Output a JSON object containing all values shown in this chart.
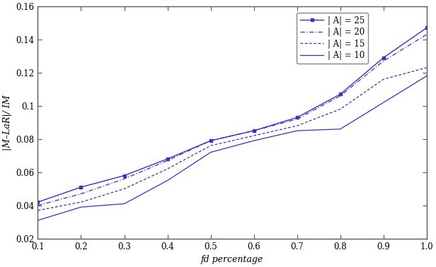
{
  "x": [
    0.1,
    0.2,
    0.3,
    0.4,
    0.5,
    0.6,
    0.7,
    0.8,
    0.9,
    1.0
  ],
  "series": {
    "|A|=25": [
      0.042,
      0.051,
      0.058,
      0.068,
      0.079,
      0.085,
      0.093,
      0.107,
      0.129,
      0.147
    ],
    "|A|=20": [
      0.04,
      0.047,
      0.056,
      0.067,
      0.079,
      0.085,
      0.092,
      0.106,
      0.127,
      0.143
    ],
    "|A|=15": [
      0.037,
      0.042,
      0.05,
      0.062,
      0.076,
      0.082,
      0.088,
      0.098,
      0.116,
      0.123
    ],
    "|A|=10": [
      0.031,
      0.039,
      0.041,
      0.055,
      0.072,
      0.079,
      0.085,
      0.086,
      0.102,
      0.118
    ]
  },
  "color": "#3333bb",
  "xlabel": "fd percentage",
  "ylabel": "|M–LaR|/ IM",
  "xlim": [
    0.1,
    1.0
  ],
  "ylim": [
    0.02,
    0.16
  ],
  "xticks": [
    0.1,
    0.2,
    0.3,
    0.4,
    0.5,
    0.6,
    0.7,
    0.8,
    0.9,
    1.0
  ],
  "yticks": [
    0.02,
    0.04,
    0.06,
    0.08,
    0.1,
    0.12,
    0.14,
    0.16
  ],
  "legend_labels": [
    "| A| = 25",
    "| A| = 20",
    "| A| = 15",
    "| A| = 10"
  ],
  "legend_keys": [
    "|A|=25",
    "|A|=20",
    "|A|=15",
    "|A|=10"
  ],
  "background_color": "#ffffff",
  "fig_width": 6.16,
  "fig_height": 3.78,
  "dpi": 100
}
